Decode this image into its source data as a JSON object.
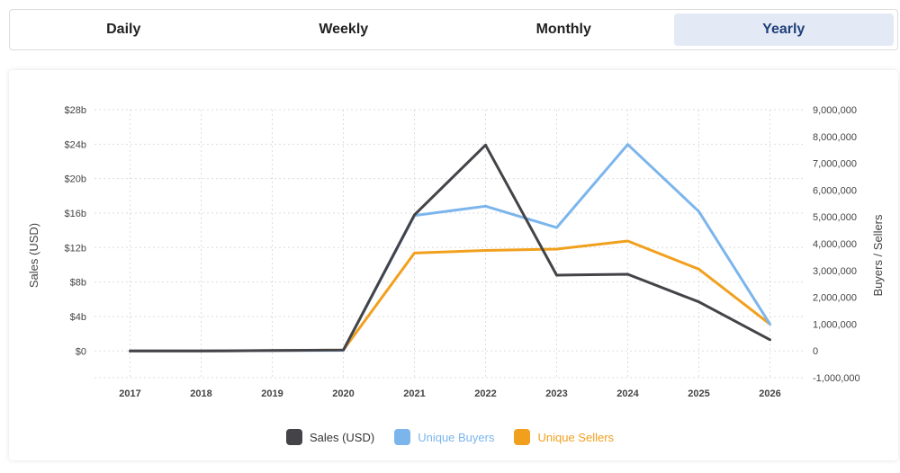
{
  "tabs": [
    {
      "label": "Daily",
      "active": false
    },
    {
      "label": "Weekly",
      "active": false
    },
    {
      "label": "Monthly",
      "active": false
    },
    {
      "label": "Yearly",
      "active": true
    }
  ],
  "chart_data": {
    "type": "line",
    "x": [
      "2017",
      "2018",
      "2019",
      "2020",
      "2021",
      "2022",
      "2023",
      "2024",
      "2025",
      "2026"
    ],
    "ylabel": "Sales (USD)",
    "y2label": "Buyers / Sellers",
    "y_ticks": [
      "$0",
      "$4b",
      "$8b",
      "$12b",
      "$16b",
      "$20b",
      "$24b",
      "$28b"
    ],
    "y_tick_values": [
      0,
      4,
      8,
      12,
      16,
      20,
      24,
      28
    ],
    "ylim": [
      -3.1,
      28
    ],
    "y2_ticks": [
      "-1,000,000",
      "0",
      "1,000,000",
      "2,000,000",
      "3,000,000",
      "4,000,000",
      "5,000,000",
      "6,000,000",
      "7,000,000",
      "8,000,000",
      "9,000,000"
    ],
    "y2_tick_values": [
      -1000000,
      0,
      1000000,
      2000000,
      3000000,
      4000000,
      5000000,
      6000000,
      7000000,
      8000000,
      9000000
    ],
    "y2lim": [
      -1000000,
      9000000
    ],
    "grid": true,
    "legend_position": "bottom",
    "series": [
      {
        "name": "Sales (USD)",
        "axis": "left",
        "color": "#434348",
        "values": [
          0,
          0,
          0.05,
          0.1,
          15.8,
          23.9,
          8.8,
          8.9,
          5.7,
          1.3
        ]
      },
      {
        "name": "Unique Buyers",
        "axis": "right",
        "color": "#7cb5ec",
        "values": [
          0,
          0,
          10000,
          20000,
          5050000,
          5400000,
          4600000,
          7700000,
          5200000,
          1000000
        ]
      },
      {
        "name": "Unique Sellers",
        "axis": "right",
        "color": "#f1a01e",
        "values": [
          0,
          0,
          10000,
          30000,
          3650000,
          3750000,
          3800000,
          4100000,
          3050000,
          1000000
        ]
      }
    ]
  }
}
